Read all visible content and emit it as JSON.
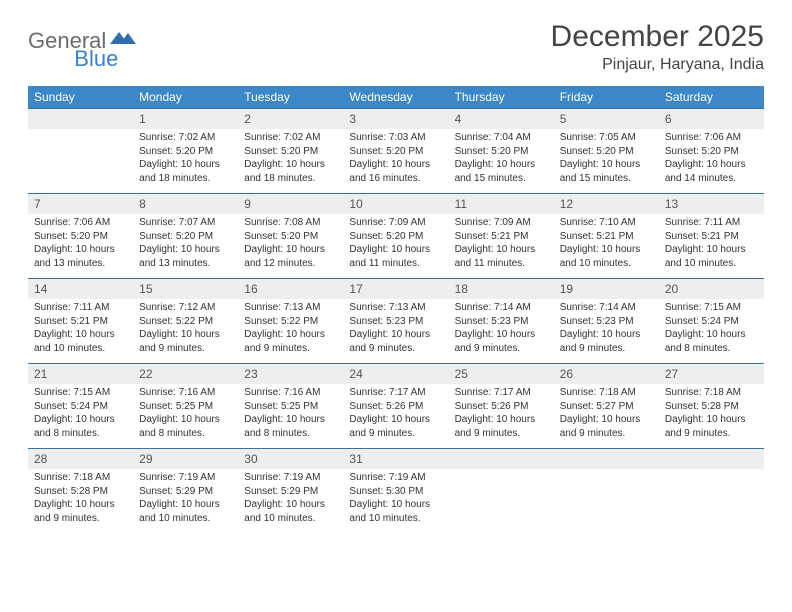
{
  "brand": {
    "part1": "General",
    "part2": "Blue"
  },
  "title": "December 2025",
  "location": "Pinjaur, Haryana, India",
  "colors": {
    "header_bg": "#3b87c8",
    "header_text": "#ffffff",
    "daynum_bg": "#eceef0",
    "row_divider": "#3b6fa0",
    "body_text": "#333333",
    "logo_gray": "#6b6b6b",
    "logo_blue": "#3b7fc4"
  },
  "typography": {
    "title_fontsize": 30,
    "location_fontsize": 16,
    "dayhead_fontsize": 12,
    "daynum_fontsize": 12,
    "cell_fontsize": 10
  },
  "weekdays": [
    "Sunday",
    "Monday",
    "Tuesday",
    "Wednesday",
    "Thursday",
    "Friday",
    "Saturday"
  ],
  "weeks": [
    {
      "nums": [
        "",
        "1",
        "2",
        "3",
        "4",
        "5",
        "6"
      ],
      "cells": [
        null,
        {
          "sunrise": "Sunrise: 7:02 AM",
          "sunset": "Sunset: 5:20 PM",
          "day1": "Daylight: 10 hours",
          "day2": "and 18 minutes."
        },
        {
          "sunrise": "Sunrise: 7:02 AM",
          "sunset": "Sunset: 5:20 PM",
          "day1": "Daylight: 10 hours",
          "day2": "and 18 minutes."
        },
        {
          "sunrise": "Sunrise: 7:03 AM",
          "sunset": "Sunset: 5:20 PM",
          "day1": "Daylight: 10 hours",
          "day2": "and 16 minutes."
        },
        {
          "sunrise": "Sunrise: 7:04 AM",
          "sunset": "Sunset: 5:20 PM",
          "day1": "Daylight: 10 hours",
          "day2": "and 15 minutes."
        },
        {
          "sunrise": "Sunrise: 7:05 AM",
          "sunset": "Sunset: 5:20 PM",
          "day1": "Daylight: 10 hours",
          "day2": "and 15 minutes."
        },
        {
          "sunrise": "Sunrise: 7:06 AM",
          "sunset": "Sunset: 5:20 PM",
          "day1": "Daylight: 10 hours",
          "day2": "and 14 minutes."
        }
      ]
    },
    {
      "nums": [
        "7",
        "8",
        "9",
        "10",
        "11",
        "12",
        "13"
      ],
      "cells": [
        {
          "sunrise": "Sunrise: 7:06 AM",
          "sunset": "Sunset: 5:20 PM",
          "day1": "Daylight: 10 hours",
          "day2": "and 13 minutes."
        },
        {
          "sunrise": "Sunrise: 7:07 AM",
          "sunset": "Sunset: 5:20 PM",
          "day1": "Daylight: 10 hours",
          "day2": "and 13 minutes."
        },
        {
          "sunrise": "Sunrise: 7:08 AM",
          "sunset": "Sunset: 5:20 PM",
          "day1": "Daylight: 10 hours",
          "day2": "and 12 minutes."
        },
        {
          "sunrise": "Sunrise: 7:09 AM",
          "sunset": "Sunset: 5:20 PM",
          "day1": "Daylight: 10 hours",
          "day2": "and 11 minutes."
        },
        {
          "sunrise": "Sunrise: 7:09 AM",
          "sunset": "Sunset: 5:21 PM",
          "day1": "Daylight: 10 hours",
          "day2": "and 11 minutes."
        },
        {
          "sunrise": "Sunrise: 7:10 AM",
          "sunset": "Sunset: 5:21 PM",
          "day1": "Daylight: 10 hours",
          "day2": "and 10 minutes."
        },
        {
          "sunrise": "Sunrise: 7:11 AM",
          "sunset": "Sunset: 5:21 PM",
          "day1": "Daylight: 10 hours",
          "day2": "and 10 minutes."
        }
      ]
    },
    {
      "nums": [
        "14",
        "15",
        "16",
        "17",
        "18",
        "19",
        "20"
      ],
      "cells": [
        {
          "sunrise": "Sunrise: 7:11 AM",
          "sunset": "Sunset: 5:21 PM",
          "day1": "Daylight: 10 hours",
          "day2": "and 10 minutes."
        },
        {
          "sunrise": "Sunrise: 7:12 AM",
          "sunset": "Sunset: 5:22 PM",
          "day1": "Daylight: 10 hours",
          "day2": "and 9 minutes."
        },
        {
          "sunrise": "Sunrise: 7:13 AM",
          "sunset": "Sunset: 5:22 PM",
          "day1": "Daylight: 10 hours",
          "day2": "and 9 minutes."
        },
        {
          "sunrise": "Sunrise: 7:13 AM",
          "sunset": "Sunset: 5:23 PM",
          "day1": "Daylight: 10 hours",
          "day2": "and 9 minutes."
        },
        {
          "sunrise": "Sunrise: 7:14 AM",
          "sunset": "Sunset: 5:23 PM",
          "day1": "Daylight: 10 hours",
          "day2": "and 9 minutes."
        },
        {
          "sunrise": "Sunrise: 7:14 AM",
          "sunset": "Sunset: 5:23 PM",
          "day1": "Daylight: 10 hours",
          "day2": "and 9 minutes."
        },
        {
          "sunrise": "Sunrise: 7:15 AM",
          "sunset": "Sunset: 5:24 PM",
          "day1": "Daylight: 10 hours",
          "day2": "and 8 minutes."
        }
      ]
    },
    {
      "nums": [
        "21",
        "22",
        "23",
        "24",
        "25",
        "26",
        "27"
      ],
      "cells": [
        {
          "sunrise": "Sunrise: 7:15 AM",
          "sunset": "Sunset: 5:24 PM",
          "day1": "Daylight: 10 hours",
          "day2": "and 8 minutes."
        },
        {
          "sunrise": "Sunrise: 7:16 AM",
          "sunset": "Sunset: 5:25 PM",
          "day1": "Daylight: 10 hours",
          "day2": "and 8 minutes."
        },
        {
          "sunrise": "Sunrise: 7:16 AM",
          "sunset": "Sunset: 5:25 PM",
          "day1": "Daylight: 10 hours",
          "day2": "and 8 minutes."
        },
        {
          "sunrise": "Sunrise: 7:17 AM",
          "sunset": "Sunset: 5:26 PM",
          "day1": "Daylight: 10 hours",
          "day2": "and 9 minutes."
        },
        {
          "sunrise": "Sunrise: 7:17 AM",
          "sunset": "Sunset: 5:26 PM",
          "day1": "Daylight: 10 hours",
          "day2": "and 9 minutes."
        },
        {
          "sunrise": "Sunrise: 7:18 AM",
          "sunset": "Sunset: 5:27 PM",
          "day1": "Daylight: 10 hours",
          "day2": "and 9 minutes."
        },
        {
          "sunrise": "Sunrise: 7:18 AM",
          "sunset": "Sunset: 5:28 PM",
          "day1": "Daylight: 10 hours",
          "day2": "and 9 minutes."
        }
      ]
    },
    {
      "nums": [
        "28",
        "29",
        "30",
        "31",
        "",
        "",
        ""
      ],
      "cells": [
        {
          "sunrise": "Sunrise: 7:18 AM",
          "sunset": "Sunset: 5:28 PM",
          "day1": "Daylight: 10 hours",
          "day2": "and 9 minutes."
        },
        {
          "sunrise": "Sunrise: 7:19 AM",
          "sunset": "Sunset: 5:29 PM",
          "day1": "Daylight: 10 hours",
          "day2": "and 10 minutes."
        },
        {
          "sunrise": "Sunrise: 7:19 AM",
          "sunset": "Sunset: 5:29 PM",
          "day1": "Daylight: 10 hours",
          "day2": "and 10 minutes."
        },
        {
          "sunrise": "Sunrise: 7:19 AM",
          "sunset": "Sunset: 5:30 PM",
          "day1": "Daylight: 10 hours",
          "day2": "and 10 minutes."
        },
        null,
        null,
        null
      ]
    }
  ]
}
